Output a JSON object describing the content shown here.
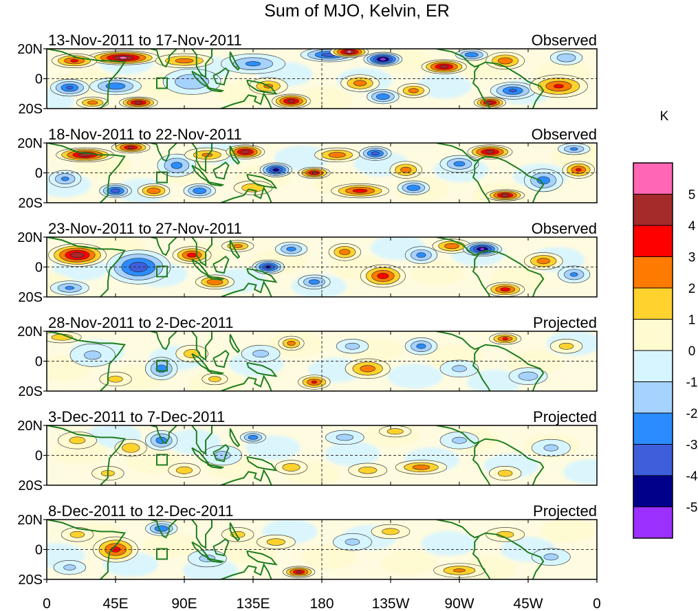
{
  "chart_data": {
    "type": "heatmap",
    "title": "Sum of MJO, Kelvin, ER",
    "units": "K",
    "x_ticks": [
      "0",
      "45E",
      "90E",
      "135E",
      "180",
      "135W",
      "90W",
      "45W",
      "0"
    ],
    "y_ticks": [
      "20N",
      "0",
      "20S"
    ],
    "lat_range": [
      -20,
      20
    ],
    "lon_range": [
      0,
      360
    ],
    "colorbar": {
      "levels": [
        "5",
        "4",
        "3",
        "2",
        "1",
        "0",
        "-1",
        "-2",
        "-3",
        "-4",
        "-5"
      ],
      "colors": [
        "#ff66b3",
        "#a52a2a",
        "#ff0000",
        "#ff7a00",
        "#ffd22e",
        "#fffad0",
        "#d7f5ff",
        "#a6d2ff",
        "#2b8cff",
        "#3e5edc",
        "#00008b",
        "#9b30ff"
      ]
    },
    "panels": [
      {
        "period": "13-Nov-2011 to 17-Nov-2011",
        "type": "Observed",
        "anomalies": [
          {
            "lon": 50,
            "lat": 14,
            "v": 5.2,
            "wl": 22,
            "wt": 5
          },
          {
            "lon": 18,
            "lat": 12,
            "v": 3.2,
            "wl": 14,
            "wt": 5
          },
          {
            "lon": 90,
            "lat": 12,
            "v": 2.5,
            "wl": 18,
            "wt": 5
          },
          {
            "lon": 15,
            "lat": -6,
            "v": -3.2,
            "wl": 12,
            "wt": 6
          },
          {
            "lon": 45,
            "lat": -5,
            "v": -2.8,
            "wl": 16,
            "wt": 6
          },
          {
            "lon": 60,
            "lat": -16,
            "v": 4.6,
            "wl": 12,
            "wt": 4
          },
          {
            "lon": 30,
            "lat": -16,
            "v": 2.5,
            "wl": 10,
            "wt": 4
          },
          {
            "lon": 95,
            "lat": -2,
            "v": -2.0,
            "wl": 18,
            "wt": 9
          },
          {
            "lon": 135,
            "lat": 10,
            "v": -2.2,
            "wl": 20,
            "wt": 7
          },
          {
            "lon": 145,
            "lat": -5,
            "v": 2.2,
            "wl": 12,
            "wt": 6
          },
          {
            "lon": 160,
            "lat": -15,
            "v": 4.6,
            "wl": 12,
            "wt": 5
          },
          {
            "lon": 185,
            "lat": 16,
            "v": -3.6,
            "wl": 18,
            "wt": 5
          },
          {
            "lon": 198,
            "lat": 18,
            "v": 5.2,
            "wl": 12,
            "wt": 4
          },
          {
            "lon": 220,
            "lat": 13,
            "v": -5.5,
            "wl": 12,
            "wt": 5
          },
          {
            "lon": 205,
            "lat": -3,
            "v": 2.6,
            "wl": 12,
            "wt": 6
          },
          {
            "lon": 220,
            "lat": -12,
            "v": -3.0,
            "wl": 10,
            "wt": 5
          },
          {
            "lon": 260,
            "lat": 8,
            "v": 4.6,
            "wl": 14,
            "wt": 5
          },
          {
            "lon": 240,
            "lat": -8,
            "v": 2.5,
            "wl": 10,
            "wt": 5
          },
          {
            "lon": 278,
            "lat": 16,
            "v": -3.0,
            "wl": 10,
            "wt": 4
          },
          {
            "lon": 300,
            "lat": 12,
            "v": 2.8,
            "wl": 12,
            "wt": 6
          },
          {
            "lon": 305,
            "lat": -8,
            "v": -3.2,
            "wl": 14,
            "wt": 6
          },
          {
            "lon": 290,
            "lat": -16,
            "v": 4.6,
            "wl": 10,
            "wt": 4
          },
          {
            "lon": 335,
            "lat": -5,
            "v": 3.2,
            "wl": 18,
            "wt": 8
          },
          {
            "lon": 340,
            "lat": 14,
            "v": -2.0,
            "wl": 10,
            "wt": 5
          }
        ]
      },
      {
        "period": "18-Nov-2011 to 22-Nov-2011",
        "type": "Observed",
        "anomalies": [
          {
            "lon": 25,
            "lat": 12,
            "v": 4.8,
            "wl": 18,
            "wt": 5
          },
          {
            "lon": 55,
            "lat": 17,
            "v": 4.2,
            "wl": 12,
            "wt": 4
          },
          {
            "lon": 12,
            "lat": -4,
            "v": -2.2,
            "wl": 10,
            "wt": 6
          },
          {
            "lon": 45,
            "lat": -12,
            "v": -3.8,
            "wl": 10,
            "wt": 5
          },
          {
            "lon": 70,
            "lat": -12,
            "v": 3.0,
            "wl": 10,
            "wt": 5
          },
          {
            "lon": 85,
            "lat": 5,
            "v": -2.4,
            "wl": 12,
            "wt": 8
          },
          {
            "lon": 100,
            "lat": -12,
            "v": -3.0,
            "wl": 10,
            "wt": 5
          },
          {
            "lon": 105,
            "lat": 12,
            "v": 2.2,
            "wl": 14,
            "wt": 5
          },
          {
            "lon": 130,
            "lat": 14,
            "v": 4.8,
            "wl": 12,
            "wt": 5
          },
          {
            "lon": 150,
            "lat": 2,
            "v": -4.6,
            "wl": 10,
            "wt": 5
          },
          {
            "lon": 135,
            "lat": -10,
            "v": 2.0,
            "wl": 12,
            "wt": 5
          },
          {
            "lon": 175,
            "lat": 0,
            "v": 4.2,
            "wl": 10,
            "wt": 4
          },
          {
            "lon": 190,
            "lat": 12,
            "v": 2.8,
            "wl": 14,
            "wt": 5
          },
          {
            "lon": 205,
            "lat": -12,
            "v": 3.6,
            "wl": 18,
            "wt": 5
          },
          {
            "lon": 215,
            "lat": 13,
            "v": -3.6,
            "wl": 10,
            "wt": 5
          },
          {
            "lon": 235,
            "lat": 2,
            "v": 2.6,
            "wl": 10,
            "wt": 6
          },
          {
            "lon": 240,
            "lat": -10,
            "v": -3.0,
            "wl": 10,
            "wt": 5
          },
          {
            "lon": 270,
            "lat": 6,
            "v": -2.4,
            "wl": 12,
            "wt": 6
          },
          {
            "lon": 290,
            "lat": 14,
            "v": 4.6,
            "wl": 14,
            "wt": 5
          },
          {
            "lon": 300,
            "lat": -15,
            "v": 4.6,
            "wl": 12,
            "wt": 4
          },
          {
            "lon": 325,
            "lat": -5,
            "v": -2.6,
            "wl": 12,
            "wt": 8
          },
          {
            "lon": 348,
            "lat": 2,
            "v": 3.2,
            "wl": 10,
            "wt": 6
          },
          {
            "lon": 345,
            "lat": 16,
            "v": -2.2,
            "wl": 10,
            "wt": 4
          }
        ]
      },
      {
        "period": "23-Nov-2011 to 27-Nov-2011",
        "type": "Observed",
        "anomalies": [
          {
            "lon": 20,
            "lat": 8,
            "v": 4.8,
            "wl": 18,
            "wt": 8
          },
          {
            "lon": 60,
            "lat": 0,
            "v": -3.8,
            "wl": 20,
            "wt": 12
          },
          {
            "lon": 15,
            "lat": -14,
            "v": -2.2,
            "wl": 12,
            "wt": 5
          },
          {
            "lon": 95,
            "lat": 8,
            "v": 3.6,
            "wl": 12,
            "wt": 6
          },
          {
            "lon": 110,
            "lat": -10,
            "v": 3.0,
            "wl": 12,
            "wt": 5
          },
          {
            "lon": 125,
            "lat": 14,
            "v": 2.4,
            "wl": 10,
            "wt": 4
          },
          {
            "lon": 145,
            "lat": 0,
            "v": -4.4,
            "wl": 10,
            "wt": 5
          },
          {
            "lon": 160,
            "lat": 12,
            "v": -2.4,
            "wl": 10,
            "wt": 5
          },
          {
            "lon": 175,
            "lat": -10,
            "v": -2.6,
            "wl": 10,
            "wt": 5
          },
          {
            "lon": 195,
            "lat": 10,
            "v": 2.6,
            "wl": 10,
            "wt": 6
          },
          {
            "lon": 220,
            "lat": -6,
            "v": 3.6,
            "wl": 14,
            "wt": 8
          },
          {
            "lon": 245,
            "lat": 8,
            "v": -2.4,
            "wl": 10,
            "wt": 6
          },
          {
            "lon": 265,
            "lat": 14,
            "v": 2.8,
            "wl": 12,
            "wt": 5
          },
          {
            "lon": 285,
            "lat": 12,
            "v": -5.2,
            "wl": 12,
            "wt": 5
          },
          {
            "lon": 300,
            "lat": -15,
            "v": 3.6,
            "wl": 12,
            "wt": 5
          },
          {
            "lon": 325,
            "lat": 4,
            "v": 2.6,
            "wl": 12,
            "wt": 6
          },
          {
            "lon": 345,
            "lat": -5,
            "v": -2.2,
            "wl": 10,
            "wt": 6
          }
        ]
      },
      {
        "period": "28-Nov-2011 to 2-Dec-2011",
        "type": "Projected",
        "anomalies": [
          {
            "lon": 10,
            "lat": 16,
            "v": 1.8,
            "wl": 12,
            "wt": 4
          },
          {
            "lon": 30,
            "lat": 4,
            "v": -1.2,
            "wl": 14,
            "wt": 8
          },
          {
            "lon": 45,
            "lat": -12,
            "v": 1.4,
            "wl": 10,
            "wt": 5
          },
          {
            "lon": 75,
            "lat": -5,
            "v": -2.6,
            "wl": 10,
            "wt": 8
          },
          {
            "lon": 95,
            "lat": 5,
            "v": 1.6,
            "wl": 10,
            "wt": 6
          },
          {
            "lon": 110,
            "lat": -12,
            "v": 1.5,
            "wl": 8,
            "wt": 4
          },
          {
            "lon": 140,
            "lat": 5,
            "v": -1.3,
            "wl": 12,
            "wt": 6
          },
          {
            "lon": 160,
            "lat": 12,
            "v": 2.5,
            "wl": 8,
            "wt": 5
          },
          {
            "lon": 175,
            "lat": -14,
            "v": 3.2,
            "wl": 10,
            "wt": 5
          },
          {
            "lon": 200,
            "lat": 10,
            "v": -1.4,
            "wl": 10,
            "wt": 5
          },
          {
            "lon": 210,
            "lat": -5,
            "v": 2.6,
            "wl": 14,
            "wt": 7
          },
          {
            "lon": 245,
            "lat": 10,
            "v": -2.4,
            "wl": 10,
            "wt": 6
          },
          {
            "lon": 270,
            "lat": -5,
            "v": -1.2,
            "wl": 12,
            "wt": 6
          },
          {
            "lon": 300,
            "lat": 15,
            "v": 3.2,
            "wl": 10,
            "wt": 4
          },
          {
            "lon": 315,
            "lat": -10,
            "v": -1.6,
            "wl": 12,
            "wt": 6
          },
          {
            "lon": 340,
            "lat": 10,
            "v": 1.4,
            "wl": 10,
            "wt": 5
          }
        ]
      },
      {
        "period": "3-Dec-2011 to 7-Dec-2011",
        "type": "Projected",
        "anomalies": [
          {
            "lon": 20,
            "lat": 10,
            "v": 1.3,
            "wl": 12,
            "wt": 6
          },
          {
            "lon": 55,
            "lat": 5,
            "v": 1.8,
            "wl": 10,
            "wt": 6
          },
          {
            "lon": 40,
            "lat": -12,
            "v": 1.3,
            "wl": 10,
            "wt": 5
          },
          {
            "lon": 75,
            "lat": 10,
            "v": -2.6,
            "wl": 10,
            "wt": 7
          },
          {
            "lon": 90,
            "lat": -10,
            "v": 1.6,
            "wl": 10,
            "wt": 5
          },
          {
            "lon": 115,
            "lat": 0,
            "v": -1.3,
            "wl": 12,
            "wt": 7
          },
          {
            "lon": 135,
            "lat": 12,
            "v": -2.8,
            "wl": 8,
            "wt": 4
          },
          {
            "lon": 160,
            "lat": -8,
            "v": 1.8,
            "wl": 10,
            "wt": 5
          },
          {
            "lon": 195,
            "lat": 12,
            "v": -1.4,
            "wl": 12,
            "wt": 5
          },
          {
            "lon": 210,
            "lat": -10,
            "v": 1.5,
            "wl": 12,
            "wt": 5
          },
          {
            "lon": 245,
            "lat": -8,
            "v": 2.6,
            "wl": 16,
            "wt": 5
          },
          {
            "lon": 228,
            "lat": 16,
            "v": 1.6,
            "wl": 10,
            "wt": 4
          },
          {
            "lon": 270,
            "lat": 10,
            "v": -1.2,
            "wl": 12,
            "wt": 6
          },
          {
            "lon": 300,
            "lat": -12,
            "v": 1.4,
            "wl": 10,
            "wt": 5
          },
          {
            "lon": 330,
            "lat": 5,
            "v": -1.2,
            "wl": 12,
            "wt": 6
          }
        ]
      },
      {
        "period": "8-Dec-2011 to 12-Dec-2011",
        "type": "Projected",
        "anomalies": [
          {
            "lon": 45,
            "lat": 0,
            "v": 3.4,
            "wl": 14,
            "wt": 9
          },
          {
            "lon": 20,
            "lat": 10,
            "v": 1.4,
            "wl": 10,
            "wt": 5
          },
          {
            "lon": 75,
            "lat": 14,
            "v": -3.0,
            "wl": 10,
            "wt": 5
          },
          {
            "lon": 15,
            "lat": -12,
            "v": -1.2,
            "wl": 10,
            "wt": 5
          },
          {
            "lon": 105,
            "lat": -6,
            "v": -1.3,
            "wl": 12,
            "wt": 6
          },
          {
            "lon": 125,
            "lat": 10,
            "v": 1.4,
            "wl": 10,
            "wt": 5
          },
          {
            "lon": 165,
            "lat": -15,
            "v": 4.2,
            "wl": 10,
            "wt": 4
          },
          {
            "lon": 150,
            "lat": 5,
            "v": 1.5,
            "wl": 12,
            "wt": 5
          },
          {
            "lon": 200,
            "lat": 5,
            "v": -1.2,
            "wl": 12,
            "wt": 6
          },
          {
            "lon": 225,
            "lat": 12,
            "v": 1.4,
            "wl": 12,
            "wt": 5
          },
          {
            "lon": 270,
            "lat": -14,
            "v": 2.2,
            "wl": 16,
            "wt": 5
          },
          {
            "lon": 300,
            "lat": 10,
            "v": 1.4,
            "wl": 12,
            "wt": 5
          },
          {
            "lon": 330,
            "lat": -5,
            "v": -1.2,
            "wl": 12,
            "wt": 6
          }
        ]
      }
    ]
  }
}
